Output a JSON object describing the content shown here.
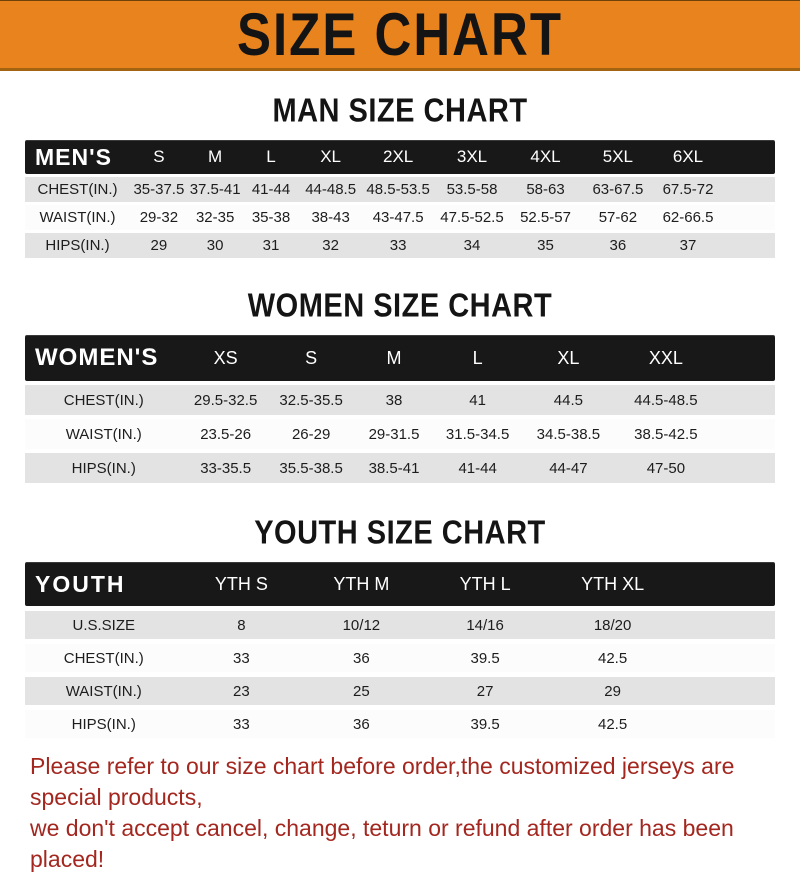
{
  "banner": {
    "title": "SIZE CHART"
  },
  "sections": {
    "men": {
      "title": "MAN SIZE CHART",
      "group_label": "MEN'S",
      "sizes": [
        "S",
        "M",
        "L",
        "XL",
        "2XL",
        "3XL",
        "4XL",
        "5XL",
        "6XL"
      ],
      "rows": [
        {
          "label": "CHEST(IN.)",
          "values": [
            "35-37.5",
            "37.5-41",
            "41-44",
            "44-48.5",
            "48.5-53.5",
            "53.5-58",
            "58-63",
            "63-67.5",
            "67.5-72"
          ]
        },
        {
          "label": "WAIST(IN.)",
          "values": [
            "29-32",
            "32-35",
            "35-38",
            "38-43",
            "43-47.5",
            "47.5-52.5",
            "52.5-57",
            "57-62",
            "62-66.5"
          ]
        },
        {
          "label": "HIPS(IN.)",
          "values": [
            "29",
            "30",
            "31",
            "32",
            "33",
            "34",
            "35",
            "36",
            "37"
          ]
        }
      ]
    },
    "women": {
      "title": "WOMEN SIZE CHART",
      "group_label": "WOMEN'S",
      "sizes": [
        "XS",
        "S",
        "M",
        "L",
        "XL",
        "XXL"
      ],
      "rows": [
        {
          "label": "CHEST(IN.)",
          "values": [
            "29.5-32.5",
            "32.5-35.5",
            "38",
            "41",
            "44.5",
            "44.5-48.5"
          ]
        },
        {
          "label": "WAIST(IN.)",
          "values": [
            "23.5-26",
            "26-29",
            "29-31.5",
            "31.5-34.5",
            "34.5-38.5",
            "38.5-42.5"
          ]
        },
        {
          "label": "HIPS(IN.)",
          "values": [
            "33-35.5",
            "35.5-38.5",
            "38.5-41",
            "41-44",
            "44-47",
            "47-50"
          ]
        }
      ]
    },
    "youth": {
      "title": "YOUTH SIZE CHART",
      "group_label": "YOUTH",
      "sizes": [
        "YTH S",
        "YTH M",
        "YTH L",
        "YTH XL"
      ],
      "rows": [
        {
          "label": "U.S.SIZE",
          "values": [
            "8",
            "10/12",
            "14/16",
            "18/20"
          ]
        },
        {
          "label": "CHEST(IN.)",
          "values": [
            "33",
            "36",
            "39.5",
            "42.5"
          ]
        },
        {
          "label": "WAIST(IN.)",
          "values": [
            "23",
            "25",
            "27",
            "29"
          ]
        },
        {
          "label": "HIPS(IN.)",
          "values": [
            "33",
            "36",
            "39.5",
            "42.5"
          ]
        }
      ]
    }
  },
  "footer": {
    "line1": "Please refer to our size chart before order,the customized jerseys are special products,",
    "line2": "we don't accept cancel, change, teturn or refund after order has been placed!"
  },
  "colors": {
    "banner_bg": "#E8831D",
    "banner_border": "#A26410",
    "bar_bg": "#181818",
    "row_alt_bg": "#E3E3E3",
    "footer_text": "#A3271F",
    "text": "#141414"
  }
}
